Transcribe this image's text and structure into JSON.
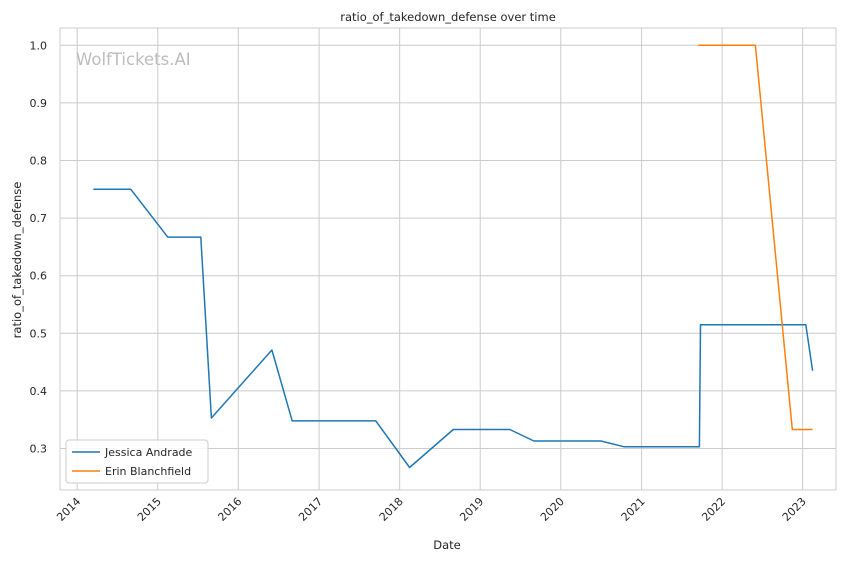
{
  "chart_data": {
    "type": "line",
    "title": "ratio_of_takedown_defense over time",
    "xlabel": "Date",
    "ylabel": "ratio_of_takedown_defense",
    "watermark": "WolfTickets.AI",
    "x_range": [
      "2013-10-15",
      "2023-06-01"
    ],
    "ylim": [
      0.228,
      1.03
    ],
    "x_ticks": [
      "2014",
      "2015",
      "2016",
      "2017",
      "2018",
      "2019",
      "2020",
      "2021",
      "2022",
      "2023"
    ],
    "y_ticks": [
      "0.3",
      "0.4",
      "0.5",
      "0.6",
      "0.7",
      "0.8",
      "0.9",
      "1.0"
    ],
    "grid": true,
    "legend_position": "lower-left",
    "series": [
      {
        "name": "Jessica Andrade",
        "color": "#1f77b4",
        "points": [
          [
            "2014-03-15",
            0.75
          ],
          [
            "2014-09-01",
            0.75
          ],
          [
            "2015-02-15",
            0.667
          ],
          [
            "2015-07-15",
            0.667
          ],
          [
            "2015-09-01",
            0.353
          ],
          [
            "2016-06-01",
            0.471
          ],
          [
            "2016-09-01",
            0.348
          ],
          [
            "2017-09-15",
            0.348
          ],
          [
            "2018-02-15",
            0.267
          ],
          [
            "2018-09-01",
            0.333
          ],
          [
            "2019-05-15",
            0.333
          ],
          [
            "2019-09-01",
            0.313
          ],
          [
            "2020-07-01",
            0.313
          ],
          [
            "2020-10-15",
            0.303
          ],
          [
            "2021-09-20",
            0.303
          ],
          [
            "2021-09-25",
            0.515
          ],
          [
            "2023-01-15",
            0.515
          ],
          [
            "2023-02-15",
            0.435
          ]
        ]
      },
      {
        "name": "Erin Blanchfield",
        "color": "#ff7f0e",
        "points": [
          [
            "2021-09-15",
            1.0
          ],
          [
            "2022-06-01",
            1.0
          ],
          [
            "2022-11-15",
            0.333
          ],
          [
            "2023-02-15",
            0.333
          ]
        ]
      }
    ]
  }
}
